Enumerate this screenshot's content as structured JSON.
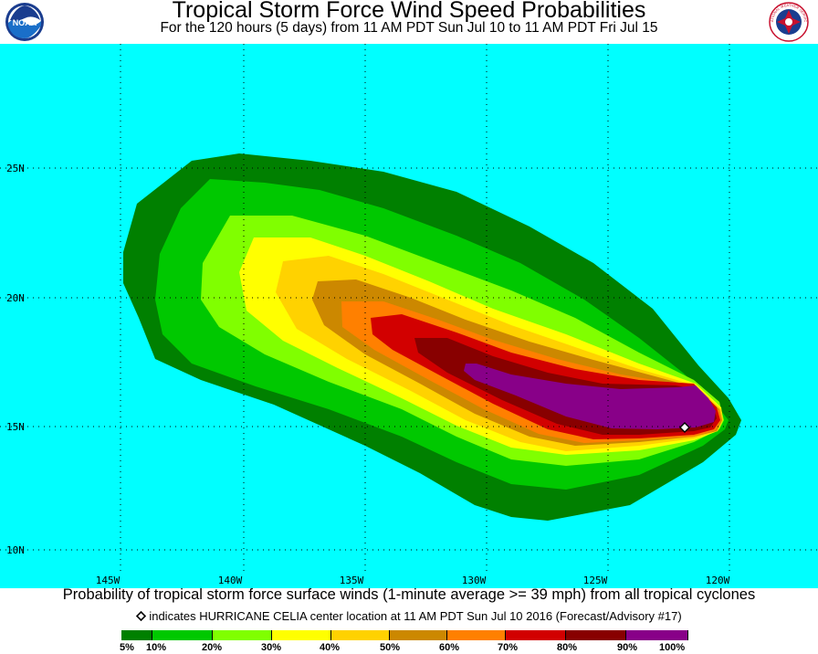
{
  "header": {
    "title": "Tropical Storm Force Wind Speed Probabilities",
    "subtitle": "For the 120 hours (5 days) from 11 AM PDT Sun Jul 10 to 11 AM PDT Fri Jul 15",
    "left_logo": {
      "icon": "noaa-logo-icon",
      "text": "NOAA"
    },
    "right_logo": {
      "icon": "nws-logo-icon",
      "text": "NATIONAL WEATHER SERVICE"
    }
  },
  "map": {
    "ocean_color": "#00FFFF",
    "latitude_labels": [
      "25N",
      "20N",
      "15N",
      "10N"
    ],
    "longitude_labels": [
      "145W",
      "140W",
      "135W",
      "130W",
      "125W",
      "120W"
    ],
    "storm_marker": {
      "icon": "diamond-icon",
      "lat": 14.9,
      "lon": -121.5
    }
  },
  "caption": "Probability of tropical storm force surface winds (1-minute average >= 39 mph) from all tropical cyclones",
  "indicator_text": "indicates HURRICANE CELIA center location at 11 AM PDT Sun Jul 10 2016 (Forecast/Advisory #17)",
  "legend": {
    "colors": [
      "#008000",
      "#00C800",
      "#80FF00",
      "#FFFF00",
      "#FFD200",
      "#CC8800",
      "#FF8000",
      "#D20000",
      "#880000",
      "#880088"
    ],
    "labels": [
      "5%",
      "10%",
      "20%",
      "30%",
      "40%",
      "50%",
      "60%",
      "70%",
      "80%",
      "90%",
      "100%"
    ]
  }
}
